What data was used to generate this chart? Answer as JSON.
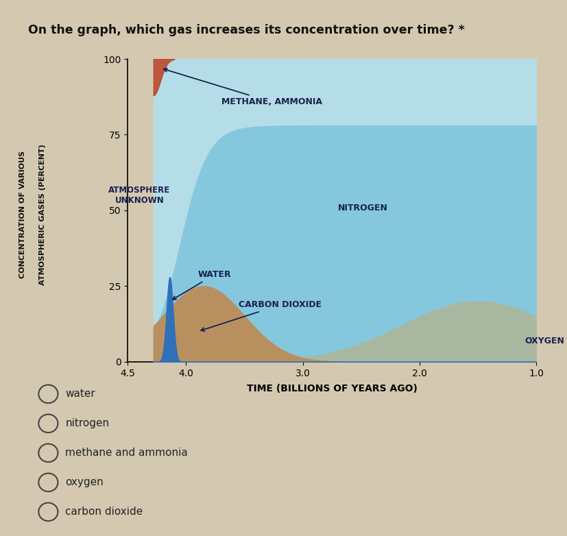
{
  "question_text": "On the graph, which gas increases its concentration over time? *",
  "ylabel_line1": "CONCENTRATION OF VARIOUS",
  "ylabel_line2": "ATMOSPHERIC GASES (PERCENT)",
  "xlabel": "TIME (BILLIONS OF YEARS AGO)",
  "ylim": [
    0,
    100
  ],
  "xticks": [
    4.5,
    4.0,
    3.0,
    2.0,
    1.0
  ],
  "yticks": [
    0,
    25,
    50,
    75,
    100
  ],
  "outer_bg": "#d4c9b0",
  "chart_bg": "#b5dde8",
  "nitrogen_color": "#8ecfdf",
  "methane_color": "#b5dde8",
  "oxygen_color": "#a8b8a0",
  "co2_color": "#b89060",
  "water_color": "#3070b8",
  "orange_color": "#c04020",
  "atm_unknown_bg": "#d4c9b0",
  "label_color": "#1a2050",
  "labels": {
    "methane_ammonia": "METHANE, AMMONIA",
    "atmosphere_unknown": "ATMOSPHERE\nUNKNOWN",
    "nitrogen": "NITROGEN",
    "water": "WATER",
    "carbon_dioxide": "CARBON DIOXIDE",
    "oxygen": "OXYGEN"
  },
  "choices": [
    "water",
    "nitrogen",
    "methane and ammonia",
    "oxygen",
    "carbon dioxide"
  ],
  "x_split": 4.28
}
